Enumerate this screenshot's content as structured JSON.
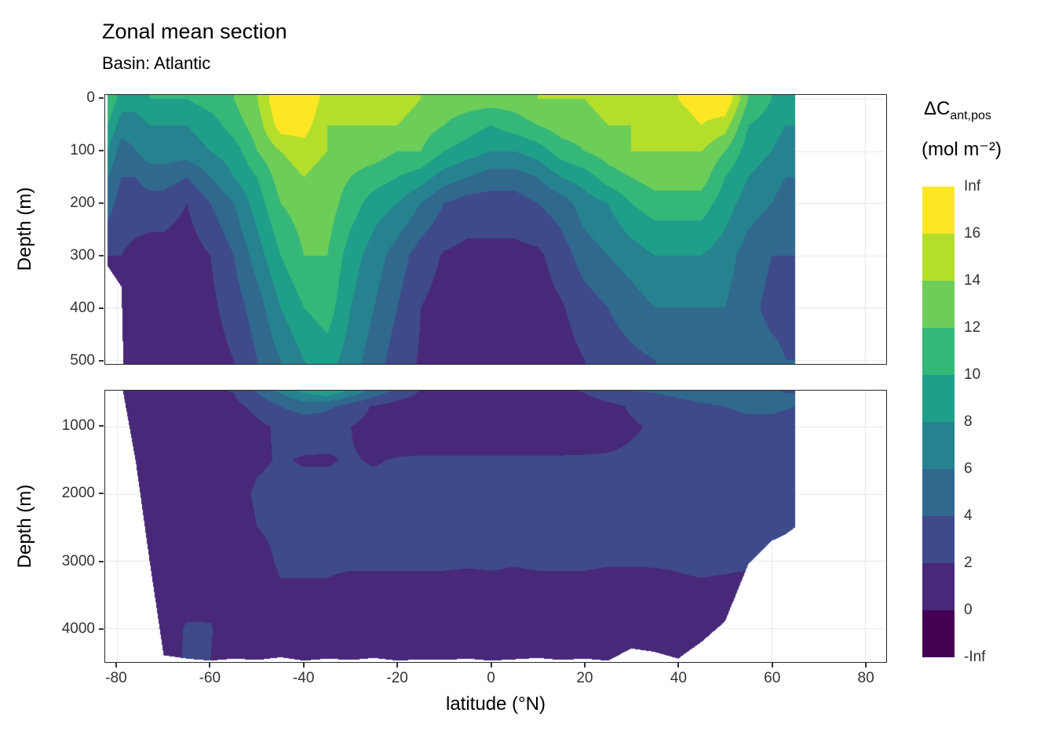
{
  "title": "Zonal mean section",
  "subtitle": "Basin: Atlantic",
  "x_axis": {
    "title": "latitude (°N)",
    "tick_values": [
      -80,
      -60,
      -40,
      -20,
      0,
      20,
      40,
      60,
      80
    ],
    "tick_labels": [
      "-80",
      "-60",
      "-40",
      "-20",
      "0",
      "20",
      "40",
      "60",
      "80"
    ]
  },
  "y_axis": {
    "title": "Depth (m)"
  },
  "panels": [
    {
      "id": "upper",
      "depth_range": [
        -8,
        508
      ],
      "tick_values": [
        0,
        100,
        200,
        300,
        400,
        500
      ],
      "tick_labels": [
        "0",
        "100",
        "200",
        "300",
        "400",
        "500"
      ]
    },
    {
      "id": "lower",
      "depth_range": [
        465,
        4500
      ],
      "tick_values": [
        1000,
        2000,
        3000,
        4000
      ],
      "tick_labels": [
        "1000",
        "2000",
        "3000",
        "4000"
      ]
    }
  ],
  "legend": {
    "title_main": "ΔC",
    "title_sub": "ant,pos",
    "units": "(mol m⁻²)",
    "tick_labels": [
      "Inf",
      "16",
      "14",
      "12",
      "10",
      "8",
      "6",
      "4",
      "2",
      "0",
      "-Inf"
    ],
    "colors_top_to_bottom": [
      "#FDE725",
      "#B4DE2C",
      "#6DCD59",
      "#35B779",
      "#1F9E89",
      "#26828E",
      "#31688E",
      "#3E4A89",
      "#482878",
      "#440154"
    ]
  },
  "chart_data": {
    "type": "heatmap",
    "subtype": "filled_contour_zonal_section",
    "title": "Zonal mean section",
    "subtitle": "Basin: Atlantic",
    "xlabel": "latitude (°N)",
    "ylabel": "Depth (m)",
    "variable": "ΔC_ant,pos (mol m⁻2)",
    "bin_thresholds": [
      0,
      2,
      4,
      6,
      8,
      10,
      12,
      14,
      16
    ],
    "bin_colors_low_to_high": [
      "#440154",
      "#482878",
      "#3E4A89",
      "#31688E",
      "#26828E",
      "#1F9E89",
      "#35B779",
      "#6DCD59",
      "#B4DE2C",
      "#FDE725"
    ],
    "plot_lat_range": [
      -82.5,
      84.5
    ],
    "lat": [
      -82,
      -79,
      -76,
      -73,
      -70,
      -65,
      -60,
      -55,
      -50,
      -45,
      -40,
      -35,
      -30,
      -25,
      -20,
      -15,
      -10,
      -5,
      0,
      5,
      10,
      15,
      20,
      25,
      30,
      35,
      40,
      45,
      50,
      55,
      60,
      63,
      65
    ],
    "depth": [
      0,
      50,
      100,
      150,
      200,
      300,
      400,
      500,
      700,
      1000,
      1500,
      2000,
      2500,
      3000,
      3500,
      4000,
      4500
    ],
    "bottom_depth": [
      320,
      360,
      1500,
      3000,
      4400,
      4450,
      4480,
      4450,
      4470,
      4430,
      4480,
      4450,
      4470,
      4440,
      4480,
      4460,
      4470,
      4450,
      4480,
      4460,
      4440,
      4470,
      4450,
      4480,
      4300,
      4350,
      4450,
      4200,
      3900,
      3050,
      2700,
      2600,
      2500
    ],
    "values": [
      [
        12,
        9,
        9,
        10,
        10,
        10,
        11,
        12,
        14,
        18,
        18,
        15,
        15,
        15,
        15,
        14,
        13,
        13,
        13,
        13,
        14,
        14,
        14,
        15,
        15,
        15,
        16,
        17,
        18,
        12,
        10,
        9,
        9
      ],
      [
        10,
        7,
        7,
        8,
        8,
        8,
        9,
        11,
        13,
        17,
        17,
        14,
        14,
        14,
        14,
        13,
        12,
        11,
        10,
        11,
        12,
        13,
        13,
        14,
        14,
        15,
        15,
        16,
        15,
        10,
        9,
        8,
        8
      ],
      [
        8,
        5,
        6,
        7,
        7,
        7,
        8,
        9,
        12,
        14,
        15,
        14,
        13,
        13,
        12,
        12,
        10,
        9,
        8,
        8,
        9,
        11,
        12,
        13,
        14,
        14,
        14,
        14,
        12,
        9,
        8,
        7,
        7
      ],
      [
        6,
        4,
        4,
        5,
        5,
        4,
        6,
        8,
        10,
        13,
        14,
        13,
        12,
        11,
        10,
        9,
        7,
        6,
        5,
        5,
        6,
        8,
        9,
        11,
        12,
        13,
        13,
        13,
        10,
        8,
        7,
        6,
        6
      ],
      [
        5,
        3,
        3,
        3,
        3,
        2,
        4,
        6,
        9,
        12,
        13,
        13,
        11,
        9,
        8,
        6,
        4,
        3,
        3,
        3,
        4,
        5,
        7,
        8,
        10,
        11,
        11,
        11,
        9,
        7,
        6,
        5,
        5
      ],
      [
        2,
        2,
        1.5,
        1.2,
        1.2,
        1,
        2,
        4,
        7,
        10,
        12,
        12,
        9,
        7,
        5,
        3,
        1.8,
        1.5,
        1.5,
        1.5,
        1.6,
        3,
        5,
        6,
        7,
        8,
        8,
        8,
        7,
        5,
        4,
        4,
        4
      ],
      [
        1.5,
        1.5,
        1.2,
        1,
        1,
        0.8,
        1.5,
        3,
        5,
        8,
        10,
        11,
        8,
        6,
        4,
        2,
        1.2,
        1,
        1,
        1,
        1.1,
        1.8,
        3,
        4,
        5,
        6,
        6,
        6,
        6,
        4.5,
        3.5,
        3.5,
        3.5
      ],
      [
        1,
        1,
        0.9,
        0.8,
        0.8,
        0.6,
        1,
        2,
        4,
        6,
        8,
        9,
        7,
        5,
        3,
        1.8,
        1,
        0.8,
        0.8,
        0.8,
        0.9,
        1.2,
        2,
        3,
        3.5,
        4,
        4.5,
        5,
        5.5,
        5,
        4.5,
        4,
        4
      ],
      [
        0.8,
        0.8,
        0.7,
        0.6,
        0.6,
        0.5,
        0.8,
        1.5,
        2.5,
        4,
        5,
        4.5,
        3,
        1.8,
        1.2,
        1,
        0.8,
        0.8,
        0.8,
        0.8,
        0.8,
        0.9,
        1,
        1.5,
        2.2,
        2.8,
        3.2,
        3.6,
        4,
        4.5,
        4.5,
        4.2,
        4
      ],
      [
        0.8,
        0.7,
        0.6,
        0.6,
        0.6,
        0.5,
        0.6,
        1,
        1.6,
        2.3,
        2.6,
        2.4,
        2,
        1.4,
        1,
        0.8,
        0.7,
        0.7,
        0.7,
        0.7,
        0.8,
        0.8,
        1,
        1.3,
        1.8,
        2.2,
        2.5,
        2.8,
        3,
        3.2,
        3.2,
        3,
        3
      ],
      [
        0.8,
        0.7,
        0.7,
        0.7,
        0.7,
        0.6,
        0.8,
        1.2,
        1.8,
        2.1,
        1.9,
        1.9,
        2.1,
        1.9,
        2.1,
        2.2,
        2.2,
        2.2,
        2.2,
        2.2,
        2.2,
        2.2,
        2.2,
        2.2,
        2.3,
        2.4,
        2.5,
        2.5,
        2.6,
        2.7,
        2.8,
        2.8,
        2.7
      ],
      [
        0.8,
        0.8,
        0.8,
        0.8,
        0.8,
        0.8,
        1,
        1.5,
        2.2,
        2.4,
        2.4,
        2.4,
        2.4,
        2.4,
        2.4,
        2.4,
        2.4,
        2.4,
        2.4,
        2.4,
        2.4,
        2.4,
        2.4,
        2.4,
        2.4,
        2.4,
        2.5,
        2.7,
        2.8,
        3,
        3,
        2.8,
        2.7
      ],
      [
        0.8,
        0.8,
        0.8,
        0.8,
        0.8,
        0.9,
        1,
        1.2,
        2,
        2.3,
        2.3,
        2.3,
        2.3,
        2.3,
        2.3,
        2.3,
        2.3,
        2.3,
        2.3,
        2.3,
        2.3,
        2.3,
        2.3,
        2.3,
        2.3,
        2.3,
        2.4,
        2.5,
        2.6,
        2.7,
        2.7,
        2.6,
        2.5
      ],
      [
        0.8,
        0.8,
        0.8,
        0.8,
        0.8,
        1,
        1,
        1,
        1.5,
        2.2,
        2.2,
        2.2,
        2.2,
        2.2,
        2.2,
        2.2,
        2.2,
        2.2,
        2.2,
        2.1,
        2.2,
        2.2,
        2.2,
        2.1,
        2.1,
        2.1,
        2.1,
        2.2,
        2.2,
        2.2,
        2.2,
        2.2,
        2.2
      ],
      [
        0.8,
        0.8,
        0.8,
        0.8,
        0.8,
        1.2,
        1.5,
        1.2,
        1.2,
        1.8,
        1.8,
        1.8,
        1.5,
        1.5,
        1.5,
        1.5,
        1.5,
        1.3,
        1.5,
        1.5,
        1.5,
        1.5,
        1.5,
        1.5,
        1.5,
        1.6,
        1.8,
        1.8,
        1.7,
        1.5,
        1.5,
        1.5,
        1.5
      ],
      [
        0.8,
        0.8,
        0.8,
        1,
        1,
        2.2,
        2.1,
        1.2,
        1.1,
        1.3,
        1.3,
        1.3,
        1.3,
        1.3,
        1.3,
        1.3,
        1.3,
        1.3,
        1.3,
        1.3,
        1.3,
        1.3,
        1.3,
        1.3,
        1.3,
        1.3,
        1.4,
        1.4,
        1.3,
        1.2,
        1.2,
        1.2,
        1.2
      ],
      [
        0.8,
        0.8,
        0.8,
        1,
        1,
        2.3,
        2,
        1.1,
        1,
        1.2,
        1.2,
        1.2,
        1.2,
        1.2,
        1.2,
        1.2,
        1.2,
        1.2,
        1.2,
        1.2,
        1.2,
        1.2,
        1.2,
        1.2,
        1.2,
        1.2,
        1.3,
        1.3,
        1.2,
        1.1,
        1.1,
        1.1,
        1.1
      ]
    ]
  }
}
